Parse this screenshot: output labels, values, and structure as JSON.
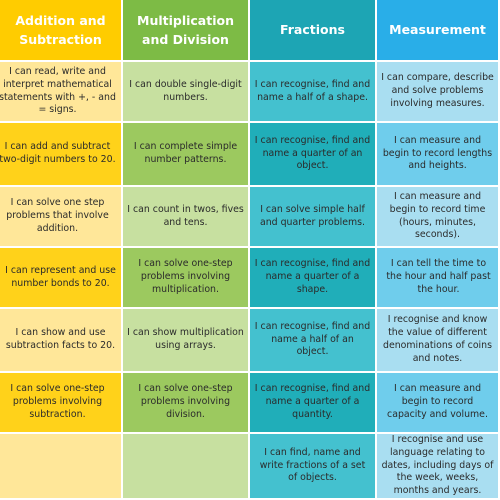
{
  "headers": [
    "Addition and Subtraction",
    "Multiplication and Division",
    "Fractions",
    "Measurement"
  ],
  "rows": [
    [
      "I can read, write and interpret mathematical statements with +, - and = signs.",
      "I can double single-digit numbers.",
      "I can recognise, find and name a half of a shape.",
      "I can compare, describe and solve problems involving measures."
    ],
    [
      "I can add and subtract two-digit numbers to 20.",
      "I can complete simple number patterns.",
      "I can recognise, find and name a quarter of an object.",
      "I can measure and begin to record lengths and heights."
    ],
    [
      "I can solve one step problems that involve addition.",
      "I can count in twos, fives and tens.",
      "I can solve simple half and quarter problems.",
      "I can measure and begin to record time (hours, minutes, seconds)."
    ],
    [
      "I can represent and use number bonds to 20.",
      "I can solve one-step problems involving multiplication.",
      "I can recognise, find and name a quarter of a shape.",
      "I can tell the time to the hour and half past the hour."
    ],
    [
      "I can show and use subtraction facts to 20.",
      "I can show multiplication using arrays.",
      "I can recognise, find and name a half of an object.",
      "I recognise and know the value of different denominations of coins and notes."
    ],
    [
      "I can solve one-step problems involving subtraction.",
      "I can solve one-step problems involving division.",
      "I can recognise, find and name a quarter of a quantity.",
      "I can measure and begin to record capacity and volume."
    ],
    [
      "",
      "",
      "I can find, name and write fractions of a set of objects.",
      "I recognise and use language relating to dates, including days of the week, weeks, months and years."
    ]
  ]
}
